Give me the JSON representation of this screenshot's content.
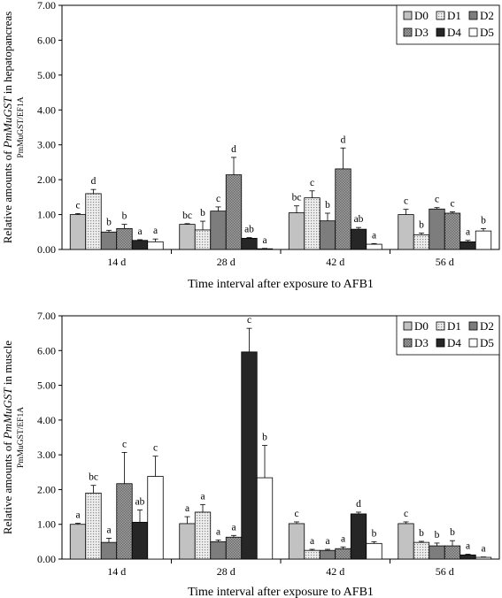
{
  "chart_data": [
    {
      "type": "bar",
      "panel": "hepatopancreas",
      "categories": [
        "14 d",
        "28 d",
        "42 d",
        "56 d"
      ],
      "xlabel": "Time interval after exposure to AFB1",
      "ylabel": "Relative amounts of PmMuGST in hepatopancreas",
      "ylabel_parts": [
        "Relative amounts of ",
        "PmMuGST",
        " in hepatopancreas"
      ],
      "ylabel_sub": "PmMuGST/EF1A",
      "ylim": [
        0,
        7
      ],
      "yticks": [
        "0.00",
        "1.00",
        "2.00",
        "3.00",
        "4.00",
        "5.00",
        "6.00",
        "7.00"
      ],
      "legend_position": "top-right",
      "grid": false,
      "series": [
        {
          "name": "D0",
          "values": [
            1.0,
            0.72,
            1.05,
            1.0
          ],
          "errors": [
            0.03,
            0.02,
            0.2,
            0.15
          ],
          "labels": [
            "c",
            "bc",
            "bc",
            "c"
          ]
        },
        {
          "name": "D1",
          "values": [
            1.6,
            0.56,
            1.48,
            0.42
          ],
          "errors": [
            0.12,
            0.25,
            0.2,
            0.05
          ],
          "labels": [
            "d",
            "b",
            "c",
            "b"
          ]
        },
        {
          "name": "D2",
          "values": [
            0.5,
            1.1,
            0.82,
            1.16
          ],
          "errors": [
            0.05,
            0.12,
            0.22,
            0.04
          ],
          "labels": [
            "b",
            "c",
            "b",
            "c"
          ]
        },
        {
          "name": "D3",
          "values": [
            0.6,
            2.14,
            2.31,
            1.04
          ],
          "errors": [
            0.12,
            0.5,
            0.6,
            0.04
          ],
          "labels": [
            "b",
            "d",
            "d",
            "c"
          ]
        },
        {
          "name": "D4",
          "values": [
            0.26,
            0.32,
            0.58,
            0.22
          ],
          "errors": [
            0.02,
            0.02,
            0.05,
            0.04
          ],
          "labels": [
            "a",
            "ab",
            "ab",
            "a"
          ]
        },
        {
          "name": "D5",
          "values": [
            0.22,
            0.02,
            0.15,
            0.53
          ],
          "errors": [
            0.08,
            0.01,
            0.02,
            0.07
          ],
          "labels": [
            "a",
            "a",
            "a",
            "b"
          ]
        }
      ]
    },
    {
      "type": "bar",
      "panel": "muscle",
      "categories": [
        "14 d",
        "28 d",
        "42 d",
        "56 d"
      ],
      "xlabel": "Time interval after exposure to AFB1",
      "ylabel": "Relative amounts of PmMuGST in muscle",
      "ylabel_parts": [
        "Relative amounts of ",
        "PmMuGST",
        " in muscle"
      ],
      "ylabel_sub": "PmMuGST/EF1A",
      "ylim": [
        0,
        7
      ],
      "yticks": [
        "0.00",
        "1.00",
        "2.00",
        "3.00",
        "4.00",
        "5.00",
        "6.00",
        "7.00"
      ],
      "legend_position": "top-right",
      "grid": false,
      "series": [
        {
          "name": "D0",
          "values": [
            1.0,
            1.02,
            1.02,
            1.02
          ],
          "errors": [
            0.03,
            0.2,
            0.05,
            0.05
          ],
          "labels": [
            "a",
            "a",
            "c",
            "c"
          ]
        },
        {
          "name": "D1",
          "values": [
            1.9,
            1.35,
            0.25,
            0.48
          ],
          "errors": [
            0.22,
            0.22,
            0.03,
            0.03
          ],
          "labels": [
            "bc",
            "a",
            "a",
            "b"
          ]
        },
        {
          "name": "D2",
          "values": [
            0.48,
            0.5,
            0.25,
            0.38
          ],
          "errors": [
            0.12,
            0.05,
            0.03,
            0.08
          ],
          "labels": [
            "a",
            "a",
            "a",
            "b"
          ]
        },
        {
          "name": "D3",
          "values": [
            2.17,
            0.63,
            0.3,
            0.38
          ],
          "errors": [
            0.9,
            0.05,
            0.05,
            0.15
          ],
          "labels": [
            "c",
            "a",
            "a",
            "b"
          ]
        },
        {
          "name": "D4",
          "values": [
            1.06,
            5.96,
            1.3,
            0.12
          ],
          "errors": [
            0.35,
            0.68,
            0.05,
            0.02
          ],
          "labels": [
            "ab",
            "c",
            "d",
            "a"
          ]
        },
        {
          "name": "D5",
          "values": [
            2.38,
            2.34,
            0.45,
            0.05
          ],
          "errors": [
            0.58,
            0.93,
            0.05,
            0.01
          ],
          "labels": [
            "c",
            "b",
            "b",
            "a"
          ]
        }
      ]
    }
  ],
  "series_styles": {
    "D0": {
      "fill": "#c2c2c2",
      "pattern": "none"
    },
    "D1": {
      "fill": "#ececec",
      "pattern": "dots"
    },
    "D2": {
      "fill": "#7d7d7d",
      "pattern": "none"
    },
    "D3": {
      "fill": "#9a9a9a",
      "pattern": "hatch"
    },
    "D4": {
      "fill": "#262626",
      "pattern": "none"
    },
    "D5": {
      "fill": "#ffffff",
      "pattern": "none"
    }
  }
}
